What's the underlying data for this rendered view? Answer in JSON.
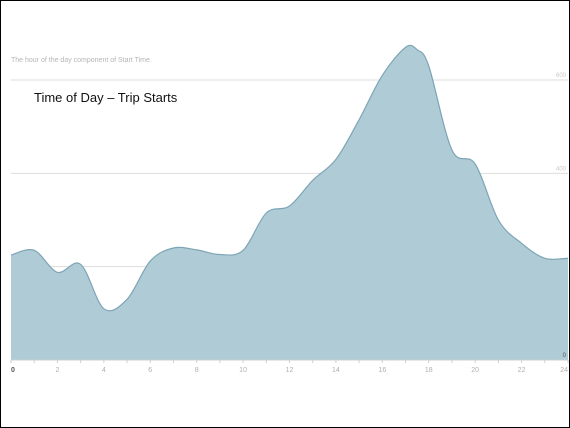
{
  "chart_data": {
    "type": "area",
    "title": "Time of Day – Trip Starts",
    "subtitle": "The hour of the day component of Start Time.",
    "xlabel": "",
    "ylabel": "",
    "x": [
      0,
      1,
      2,
      3,
      4,
      5,
      6,
      7,
      8,
      9,
      10,
      11,
      12,
      13,
      14,
      15,
      16,
      17,
      17.5,
      18,
      19,
      20,
      21,
      22,
      23,
      24
    ],
    "values": [
      225,
      235,
      188,
      205,
      110,
      130,
      212,
      240,
      236,
      226,
      235,
      315,
      330,
      385,
      430,
      515,
      610,
      670,
      665,
      630,
      450,
      420,
      300,
      250,
      218,
      218
    ],
    "xlim": [
      0,
      24
    ],
    "ylim": [
      0,
      600
    ],
    "x_ticks": [
      "0",
      "2",
      "4",
      "6",
      "8",
      "10",
      "12",
      "14",
      "16",
      "18",
      "20",
      "22",
      "24"
    ],
    "y_ticks": [
      {
        "value": 0,
        "label": "0"
      },
      {
        "value": 200,
        "label": ""
      },
      {
        "value": 400,
        "label": "400"
      },
      {
        "value": 600,
        "label": "600"
      }
    ],
    "grid": true,
    "fill_color": "#aecbd6",
    "line_color": "#7ea5b5",
    "grid_color": "#dddddd",
    "tick_color": "#b0b0b0"
  }
}
